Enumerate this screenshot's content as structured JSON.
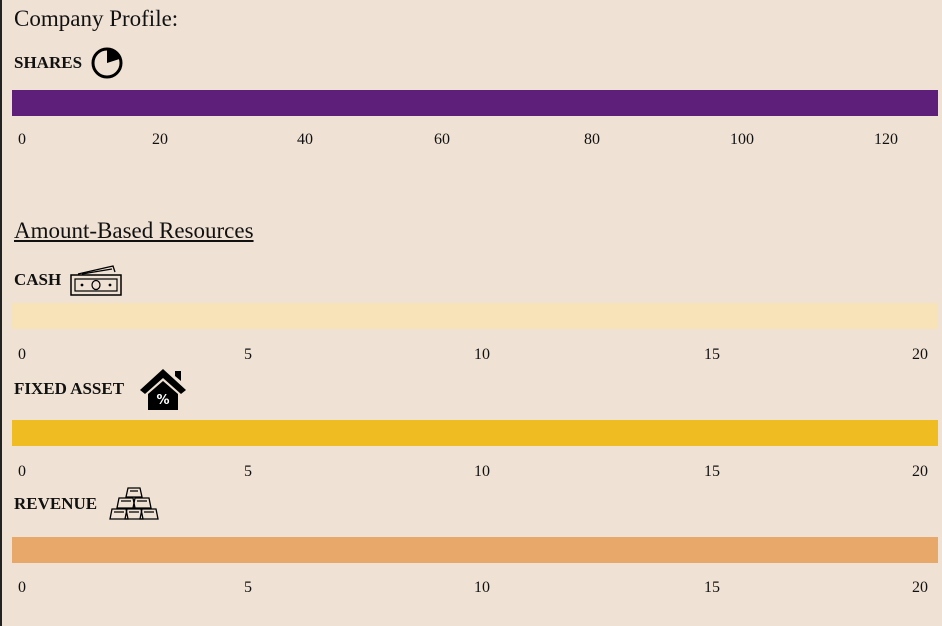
{
  "page": {
    "title": "Company Profile:",
    "section_title": "Amount-Based Resources"
  },
  "resources": [
    {
      "key": "shares",
      "label": "SHARES",
      "icon": "pie-chart-icon",
      "color": "#5e1f7a",
      "value_fraction": 1.0,
      "ticks": [
        "0",
        "20",
        "40",
        "60",
        "80",
        "100",
        "120"
      ]
    },
    {
      "key": "cash",
      "label": "CASH",
      "icon": "cash-icon",
      "color": "#f8e2b8",
      "value_fraction": 1.0,
      "ticks": [
        "0",
        "5",
        "10",
        "15",
        "20"
      ]
    },
    {
      "key": "fixed_asset",
      "label": "FIXED ASSET",
      "icon": "house-percent-icon",
      "color": "#efbc22",
      "value_fraction": 1.0,
      "ticks": [
        "0",
        "5",
        "10",
        "15",
        "20"
      ]
    },
    {
      "key": "revenue",
      "label": "REVENUE",
      "icon": "gold-bars-icon",
      "color": "#e8a86a",
      "value_fraction": 1.0,
      "ticks": [
        "0",
        "5",
        "10",
        "15",
        "20"
      ]
    }
  ]
}
